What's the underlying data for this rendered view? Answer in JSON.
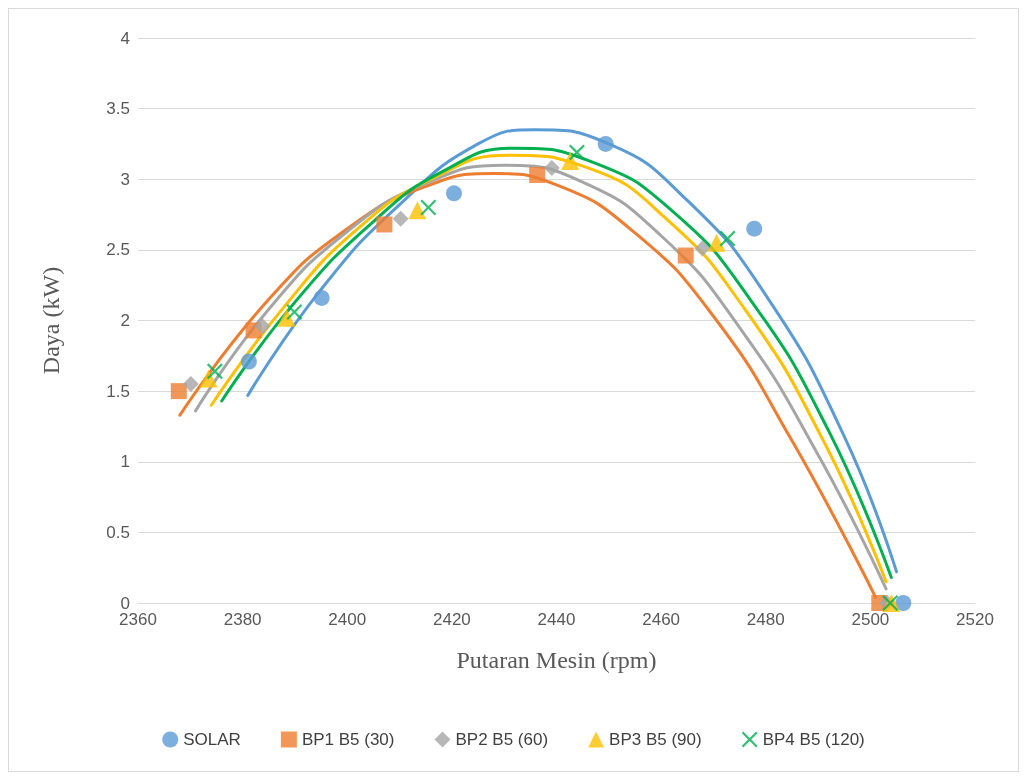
{
  "chart_data": {
    "type": "scatter",
    "xlabel": "Putaran Mesin (rpm)",
    "ylabel": "Daya (kW)",
    "xlim": [
      2360,
      2520
    ],
    "xticks": [
      2360,
      2380,
      2400,
      2420,
      2440,
      2460,
      2480,
      2500,
      2520
    ],
    "ylim": [
      0,
      4
    ],
    "yticks": [
      0,
      0.5,
      1,
      1.5,
      2,
      2.5,
      3,
      3.5,
      4
    ],
    "grid": "y",
    "legend": "bottom",
    "series": [
      {
        "name": "SOLAR",
        "color": "#5b9bd5",
        "marker": "circle",
        "x": [
          2381.2,
          2395.1,
          2420.4,
          2449.4,
          2477.8,
          2506.3
        ],
        "values": [
          1.71,
          2.16,
          2.9,
          3.25,
          2.65,
          0
        ]
      },
      {
        "name": "BP1 B5 (30)",
        "color": "#ed7d31",
        "marker": "square",
        "x": [
          2367.8,
          2382.1,
          2407.1,
          2436.3,
          2464.7,
          2501.7
        ],
        "values": [
          1.5,
          1.93,
          2.68,
          3.03,
          2.46,
          0
        ]
      },
      {
        "name": "BP2 B5 (60)",
        "color": "#a5a5a5",
        "marker": "diamond",
        "x": [
          2370.1,
          2383.8,
          2410.2,
          2439.1,
          2467.9,
          2503.2
        ],
        "values": [
          1.55,
          1.96,
          2.72,
          3.08,
          2.51,
          0
        ]
      },
      {
        "name": "BP3 B5 (90)",
        "color": "#ffc000",
        "marker": "triangle",
        "x": [
          2373.5,
          2388.4,
          2413.4,
          2442.6,
          2470.6,
          2504
        ],
        "values": [
          1.59,
          2.02,
          2.78,
          3.13,
          2.55,
          0
        ]
      },
      {
        "name": "BP4 B5 (120)",
        "color": "#00b050",
        "marker": "cross",
        "x": [
          2374.7,
          2389.9,
          2415.5,
          2443.9,
          2472.7,
          2503.8
        ],
        "values": [
          1.64,
          2.06,
          2.8,
          3.19,
          2.58,
          0
        ]
      },
      {
        "type": "line",
        "color": "#5b9bd5",
        "marker": "none",
        "x": [
          2381,
          2395,
          2410,
          2425,
          2436,
          2450,
          2465,
          2480,
          2495,
          2505
        ],
        "values": [
          1.47,
          2.22,
          2.82,
          3.25,
          3.35,
          3.25,
          2.85,
          2.18,
          1.18,
          0.22
        ]
      },
      {
        "type": "line",
        "color": "#ed7d31",
        "marker": "none",
        "x": [
          2368,
          2385,
          2400,
          2415,
          2428,
          2440,
          2455,
          2470,
          2485,
          2501
        ],
        "values": [
          1.33,
          2.15,
          2.65,
          2.95,
          3.04,
          2.96,
          2.62,
          2.03,
          1.15,
          0.04
        ]
      },
      {
        "type": "line",
        "color": "#a5a5a5",
        "marker": "none",
        "x": [
          2371,
          2385,
          2400,
          2415,
          2430,
          2445,
          2460,
          2475,
          2490,
          2503
        ],
        "values": [
          1.36,
          2.08,
          2.63,
          2.97,
          3.1,
          2.98,
          2.6,
          1.95,
          1.05,
          0.1
        ]
      },
      {
        "type": "line",
        "color": "#ffc000",
        "marker": "none",
        "x": [
          2374,
          2388,
          2402,
          2416,
          2431,
          2446,
          2461,
          2476,
          2491,
          2503
        ],
        "values": [
          1.4,
          2.1,
          2.65,
          3,
          3.17,
          3.08,
          2.72,
          2.08,
          1.15,
          0.15
        ]
      },
      {
        "type": "line",
        "color": "#00b050",
        "marker": "none",
        "x": [
          2376,
          2390,
          2405,
          2418,
          2432,
          2447,
          2462,
          2477,
          2492,
          2504
        ],
        "values": [
          1.43,
          2.13,
          2.7,
          3.05,
          3.22,
          3.12,
          2.78,
          2.15,
          1.22,
          0.18
        ]
      }
    ]
  }
}
